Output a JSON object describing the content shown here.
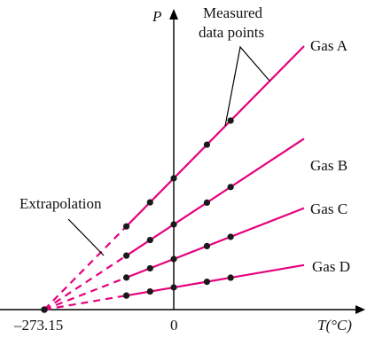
{
  "colors": {
    "line": "#e6007e",
    "point": "#1a1a1a",
    "axis": "#000000",
    "text": "#111111"
  },
  "labels": {
    "y_axis": "P",
    "x_axis": "T(°C)",
    "measured_line1": "Measured",
    "measured_line2": "data points",
    "extrapolation": "Extrapolation",
    "origin_tick": "–273.15",
    "zero_tick": "0"
  },
  "chart_data": {
    "type": "line",
    "xlabel": "T(°C)",
    "ylabel": "P",
    "x_intercept": -273.15,
    "series": [
      {
        "name": "Gas A",
        "label": "Gas A",
        "intercept": 1.0,
        "slope": 0.00366
      },
      {
        "name": "Gas B",
        "label": "Gas B",
        "intercept": 0.6,
        "slope": 0.0022
      },
      {
        "name": "Gas C",
        "label": "Gas C",
        "intercept": 0.38,
        "slope": 0.00139
      },
      {
        "name": "Gas D",
        "label": "Gas D",
        "intercept": 0.16,
        "slope": 0.00059
      }
    ],
    "measured_points_T": [
      -100,
      -50,
      0,
      70,
      120
    ]
  }
}
